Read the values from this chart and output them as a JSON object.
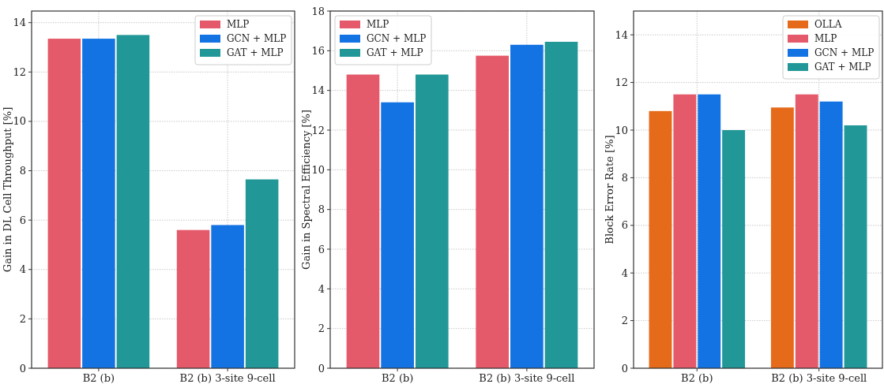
{
  "chart_data": [
    {
      "type": "bar",
      "ylabel": "Gain in DL Cell Throughput [%]",
      "categories": [
        "B2 (b)",
        "B2 (b) 3-site 9-cell"
      ],
      "ylim": [
        0,
        14.47
      ],
      "yticks": [
        0,
        2,
        4,
        6,
        8,
        10,
        12,
        14
      ],
      "grid": true,
      "legend": "top right",
      "series": [
        {
          "name": "MLP",
          "color": "#e45a6a",
          "values": [
            13.35,
            5.6
          ]
        },
        {
          "name": "GCN + MLP",
          "color": "#1373e3",
          "values": [
            13.35,
            5.8
          ]
        },
        {
          "name": "GAT + MLP",
          "color": "#229797",
          "values": [
            13.5,
            7.65
          ]
        }
      ]
    },
    {
      "type": "bar",
      "ylabel": "Gain in Spectral Efficiency [%]",
      "categories": [
        "B2 (b)",
        "B2 (b) 3-site 9-cell"
      ],
      "ylim": [
        0,
        18
      ],
      "yticks": [
        0,
        2,
        4,
        6,
        8,
        10,
        12,
        14,
        16,
        18
      ],
      "grid": true,
      "legend": "top left",
      "series": [
        {
          "name": "MLP",
          "color": "#e45a6a",
          "values": [
            14.8,
            15.75
          ]
        },
        {
          "name": "GCN + MLP",
          "color": "#1373e3",
          "values": [
            13.4,
            16.3
          ]
        },
        {
          "name": "GAT + MLP",
          "color": "#229797",
          "values": [
            14.8,
            16.45
          ]
        }
      ]
    },
    {
      "type": "bar",
      "ylabel": "Block Error Rate [%]",
      "categories": [
        "B2 (b)",
        "B2 (b) 3-site 9-cell"
      ],
      "ylim": [
        0,
        15
      ],
      "yticks": [
        0,
        2,
        4,
        6,
        8,
        10,
        12,
        14
      ],
      "grid": true,
      "legend": "top right",
      "series": [
        {
          "name": "OLLA",
          "color": "#e56b1a",
          "values": [
            10.8,
            10.95
          ]
        },
        {
          "name": "MLP",
          "color": "#e45a6a",
          "values": [
            11.5,
            11.5
          ]
        },
        {
          "name": "GCN + MLP",
          "color": "#1373e3",
          "values": [
            11.5,
            11.2
          ]
        },
        {
          "name": "GAT + MLP",
          "color": "#229797",
          "values": [
            10.0,
            10.2
          ]
        }
      ]
    }
  ]
}
